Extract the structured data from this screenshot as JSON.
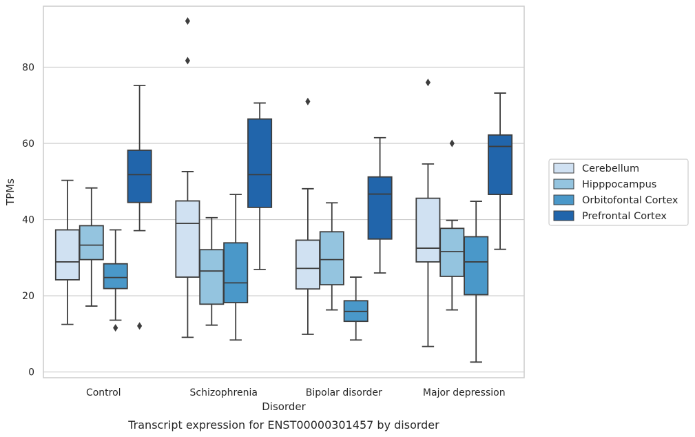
{
  "chart_data": {
    "type": "box",
    "caption": "Transcript expression for ENST00000301457 by disorder",
    "xlabel": "Disorder",
    "ylabel": "TPMs",
    "ylim": [
      -1.5,
      96
    ],
    "yticks": [
      0,
      20,
      40,
      60,
      80
    ],
    "grid": "horizontal",
    "legend_position": "right",
    "categories": [
      "Control",
      "Schizophrenia",
      "Bipolar disorder",
      "Major depression"
    ],
    "series": [
      {
        "name": "Cerebellum",
        "color": "#d0e1f2",
        "boxes": [
          {
            "whislo": 12.5,
            "q1": 24.2,
            "med": 28.9,
            "q3": 37.3,
            "whishi": 50.3,
            "fliers": []
          },
          {
            "whislo": 9.1,
            "q1": 24.9,
            "med": 39.0,
            "q3": 44.9,
            "whishi": 52.6,
            "fliers": [
              81.7,
              92.1
            ]
          },
          {
            "whislo": 9.9,
            "q1": 21.8,
            "med": 27.2,
            "q3": 34.6,
            "whishi": 48.1,
            "fliers": [
              71.0
            ]
          },
          {
            "whislo": 6.7,
            "q1": 28.9,
            "med": 32.5,
            "q3": 45.6,
            "whishi": 54.6,
            "fliers": [
              76.0
            ]
          }
        ]
      },
      {
        "name": "Hipppocampus",
        "color": "#94c4df",
        "boxes": [
          {
            "whislo": 17.3,
            "q1": 29.5,
            "med": 33.3,
            "q3": 38.4,
            "whishi": 48.3,
            "fliers": []
          },
          {
            "whislo": 12.3,
            "q1": 17.8,
            "med": 26.5,
            "q3": 32.1,
            "whishi": 40.5,
            "fliers": []
          },
          {
            "whislo": 16.3,
            "q1": 22.9,
            "med": 29.5,
            "q3": 36.8,
            "whishi": 44.4,
            "fliers": []
          },
          {
            "whislo": 16.3,
            "q1": 25.1,
            "med": 31.6,
            "q3": 37.7,
            "whishi": 39.8,
            "fliers": [
              60.0
            ]
          }
        ]
      },
      {
        "name": "Orbitofontal Cortex",
        "color": "#4a98c9",
        "boxes": [
          {
            "whislo": 13.6,
            "q1": 21.9,
            "med": 24.8,
            "q3": 28.4,
            "whishi": 37.3,
            "fliers": [
              11.6
            ]
          },
          {
            "whislo": 8.4,
            "q1": 18.2,
            "med": 23.4,
            "q3": 33.9,
            "whishi": 46.6,
            "fliers": []
          },
          {
            "whislo": 8.4,
            "q1": 13.3,
            "med": 15.9,
            "q3": 18.7,
            "whishi": 24.9,
            "fliers": []
          },
          {
            "whislo": 2.6,
            "q1": 20.3,
            "med": 28.9,
            "q3": 35.5,
            "whishi": 44.8,
            "fliers": []
          }
        ]
      },
      {
        "name": "Prefrontal Cortex",
        "color": "#2165ab",
        "boxes": [
          {
            "whislo": 37.1,
            "q1": 44.5,
            "med": 51.8,
            "q3": 58.2,
            "whishi": 75.2,
            "fliers": [
              12.1
            ]
          },
          {
            "whislo": 26.9,
            "q1": 43.2,
            "med": 51.8,
            "q3": 66.4,
            "whishi": 70.6,
            "fliers": []
          },
          {
            "whislo": 26.0,
            "q1": 34.9,
            "med": 46.7,
            "q3": 51.2,
            "whishi": 61.5,
            "fliers": []
          },
          {
            "whislo": 32.2,
            "q1": 46.6,
            "med": 59.2,
            "q3": 62.2,
            "whishi": 73.2,
            "fliers": []
          }
        ]
      }
    ]
  }
}
